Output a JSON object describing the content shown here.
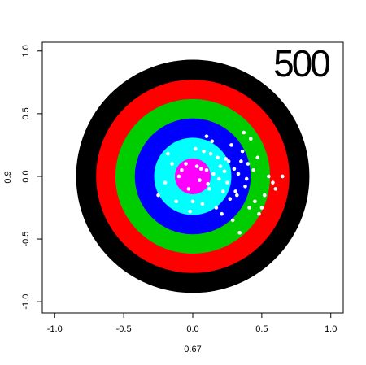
{
  "chart_data": {
    "type": "scatter",
    "annotation": "500",
    "xlabel": "0.67",
    "ylabel": "0.9",
    "xlim": [
      -1.09,
      1.09
    ],
    "ylim": [
      -1.09,
      1.07
    ],
    "xticks": [
      {
        "value": -1,
        "label": "-1.0"
      },
      {
        "value": -0.5,
        "label": "-0.5"
      },
      {
        "value": 0,
        "label": "0.0"
      },
      {
        "value": 0.5,
        "label": "0.5"
      },
      {
        "value": 1,
        "label": "1.0"
      }
    ],
    "yticks": [
      {
        "value": -1,
        "label": "-1.0"
      },
      {
        "value": -0.5,
        "label": "-0.5"
      },
      {
        "value": 0,
        "label": "0.0"
      },
      {
        "value": 0.5,
        "label": "0.5"
      },
      {
        "value": 1,
        "label": "1.0"
      }
    ],
    "rings": [
      {
        "radius": 0.845,
        "color": "#000000"
      },
      {
        "radius": 0.7,
        "color": "#ff0000"
      },
      {
        "radius": 0.56,
        "color": "#00cd00"
      },
      {
        "radius": 0.42,
        "color": "#0000ff"
      },
      {
        "radius": 0.28,
        "color": "#00ffff"
      },
      {
        "radius": 0.13,
        "color": "#ff00ff"
      }
    ],
    "color": "#ffffff",
    "x": [
      0.1,
      0.15,
      0.2,
      0.05,
      -0.05,
      -0.1,
      0.25,
      0.3,
      0.35,
      0.12,
      0.18,
      0.22,
      0.08,
      0.0,
      -0.08,
      0.28,
      0.32,
      0.4,
      0.45,
      0.5,
      0.55,
      0.6,
      0.65,
      0.48,
      0.42,
      0.38,
      0.33,
      0.27,
      0.17,
      0.1,
      -0.02,
      -0.15,
      -0.2,
      -0.25,
      -0.18,
      0.02,
      0.07,
      0.14,
      0.21,
      0.26,
      0.31,
      0.36,
      0.44,
      0.52,
      0.58,
      0.47,
      0.41,
      0.37,
      0.29,
      0.23,
      0.19,
      0.13,
      0.06,
      -0.03,
      -0.12,
      0.34,
      0.39,
      0.03,
      0.11,
      0.24
    ],
    "y": [
      0.05,
      0.02,
      0.08,
      -0.03,
      0.1,
      0.0,
      -0.05,
      0.06,
      0.12,
      -0.1,
      0.15,
      -0.12,
      0.2,
      -0.2,
      0.05,
      0.25,
      -0.15,
      0.1,
      -0.2,
      -0.25,
      0.0,
      -0.1,
      0.0,
      -0.3,
      0.3,
      -0.08,
      0.02,
      -0.18,
      -0.25,
      0.32,
      -0.28,
      0.1,
      -0.05,
      -0.15,
      0.18,
      0.22,
      -0.22,
      0.28,
      -0.3,
      0.12,
      -0.12,
      0.2,
      0.05,
      -0.15,
      -0.05,
      0.15,
      -0.25,
      0.35,
      -0.35,
      0.04,
      -0.02,
      0.18,
      0.06,
      -0.1,
      -0.2,
      -0.45,
      -0.02,
      0.08,
      -0.06,
      0.14
    ]
  }
}
